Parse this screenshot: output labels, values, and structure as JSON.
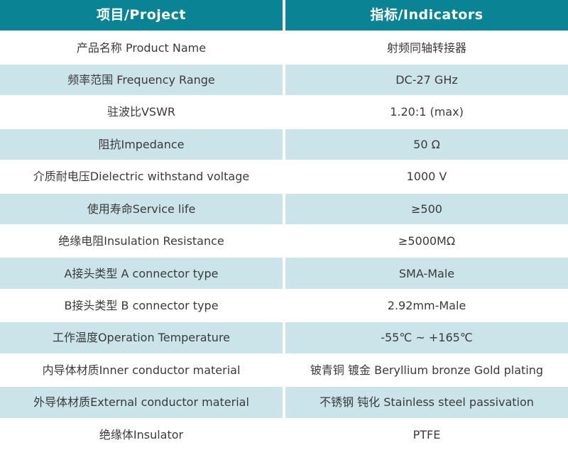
{
  "table": {
    "columns": [
      {
        "label": "项目/Project"
      },
      {
        "label": "指标/Indicators"
      }
    ],
    "rows": [
      {
        "project": "产品名称 Product Name",
        "indicator": "射频同轴转接器"
      },
      {
        "project": "频率范围 Frequency Range",
        "indicator": "DC-27 GHz"
      },
      {
        "project": "驻波比VSWR",
        "indicator": "1.20:1 (max)"
      },
      {
        "project": "阻抗Impedance",
        "indicator": "50 Ω"
      },
      {
        "project": "介质耐电压Dielectric withstand voltage",
        "indicator": "1000 V"
      },
      {
        "project": "使用寿命Service life",
        "indicator": "≥500"
      },
      {
        "project": "绝缘电阻Insulation Resistance",
        "indicator": "≥5000MΩ"
      },
      {
        "project": "A接头类型 A connector type",
        "indicator": "SMA-Male"
      },
      {
        "project": "B接头类型 B connector type",
        "indicator": "2.92mm-Male"
      },
      {
        "project": "工作温度Operation Temperature",
        "indicator": "-55℃ ~ +165℃"
      },
      {
        "project": "内导体材质Inner conductor material",
        "indicator": "铍青铜 镀金 Beryllium bronze Gold plating"
      },
      {
        "project": "外导体材质External conductor material",
        "indicator": "不锈钢 钝化 Stainless steel passivation"
      },
      {
        "project": "绝缘体Insulator",
        "indicator": "PTFE"
      }
    ]
  },
  "colors": {
    "header_bg": "#0a8494",
    "row_alt_bg": "#cbe4ea",
    "row_bg": "#ffffff",
    "text": "#3a3a3a",
    "header_text": "#ffffff"
  }
}
